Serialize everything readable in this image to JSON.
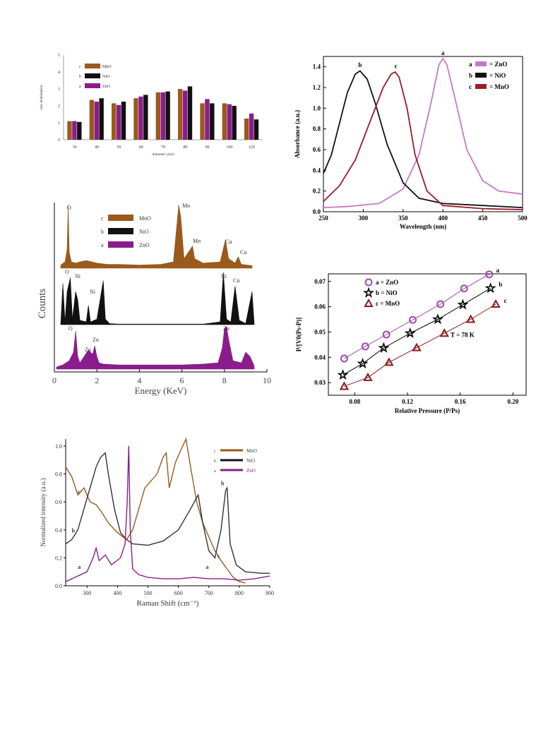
{
  "colors": {
    "mno": "#9a5a1c",
    "nio": "#111111",
    "zno": "#8a1d8c",
    "abs_zno": "#c878c8",
    "abs_mno": "#9b1b2a",
    "bet_zno": "#a04aa8",
    "bet_mno": "#8b1a1a"
  },
  "chart_data": [
    {
      "type": "bar",
      "title": "",
      "xlabel": "diameter (nm)",
      "ylabel": "size distribution",
      "ylim": [
        0,
        5
      ],
      "yticks": [
        "0",
        "1",
        "2",
        "3",
        "4",
        "5"
      ],
      "categories": [
        "30",
        "40",
        "50",
        "60",
        "70",
        "80",
        "90",
        "100",
        "120"
      ],
      "legend": [
        {
          "letter": "c",
          "label": "MnO"
        },
        {
          "letter": "b",
          "label": "NiO"
        },
        {
          "letter": "a",
          "label": "ZnO"
        }
      ],
      "series": [
        {
          "name": "MnO",
          "values": [
            1.1,
            2.35,
            2.15,
            2.45,
            2.8,
            3.0,
            2.15,
            2.15,
            1.25
          ]
        },
        {
          "name": "ZnO",
          "values": [
            1.1,
            2.25,
            2.05,
            2.55,
            2.8,
            2.9,
            2.4,
            2.1,
            1.55
          ]
        },
        {
          "name": "NiO",
          "values": [
            1.05,
            2.45,
            2.25,
            2.65,
            2.85,
            3.15,
            2.15,
            2.0,
            1.2
          ]
        }
      ]
    },
    {
      "type": "line",
      "title": "",
      "xlabel": "Wavelength (nm)",
      "ylabel": "Absorbance (a.u.)",
      "xlim": [
        250,
        500
      ],
      "ylim": [
        0,
        1.5
      ],
      "xticks": [
        "250",
        "300",
        "350",
        "400",
        "450",
        "500"
      ],
      "yticks": [
        "0.0",
        "0.2",
        "0.4",
        "0.6",
        "0.8",
        "1.0",
        "1.2",
        "1.4"
      ],
      "legend": [
        {
          "letter": "a",
          "label": "= ZnO"
        },
        {
          "letter": "b",
          "label": "= NiO"
        },
        {
          "letter": "c",
          "label": "= MnO"
        }
      ],
      "curve_labels": [
        "a",
        "b",
        "c"
      ],
      "series": [
        {
          "name": "ZnO",
          "x": [
            250,
            280,
            320,
            350,
            370,
            385,
            395,
            400,
            405,
            415,
            430,
            450,
            470,
            500
          ],
          "y": [
            0.04,
            0.05,
            0.08,
            0.22,
            0.55,
            1.05,
            1.42,
            1.48,
            1.42,
            1.1,
            0.6,
            0.3,
            0.2,
            0.17
          ]
        },
        {
          "name": "NiO",
          "x": [
            250,
            260,
            270,
            280,
            290,
            296,
            305,
            315,
            330,
            350,
            370,
            400,
            450,
            500
          ],
          "y": [
            0.37,
            0.55,
            0.85,
            1.15,
            1.33,
            1.36,
            1.28,
            1.05,
            0.65,
            0.28,
            0.13,
            0.08,
            0.06,
            0.04
          ]
        },
        {
          "name": "MnO",
          "x": [
            250,
            270,
            290,
            310,
            325,
            335,
            340,
            345,
            355,
            365,
            380,
            400,
            450,
            500
          ],
          "y": [
            0.1,
            0.25,
            0.5,
            0.9,
            1.2,
            1.33,
            1.35,
            1.3,
            1.0,
            0.55,
            0.2,
            0.06,
            0.03,
            0.02
          ]
        }
      ]
    },
    {
      "type": "line",
      "title": "",
      "xlabel": "Energy (KeV)",
      "ylabel": "Counts",
      "xlim": [
        0,
        10
      ],
      "xticks": [
        "0",
        "2",
        "4",
        "6",
        "8",
        "10"
      ],
      "legend": [
        {
          "letter": "c",
          "label": "MnO"
        },
        {
          "letter": "b",
          "label": "NiO"
        },
        {
          "letter": "a",
          "label": "ZnO"
        }
      ],
      "series": [
        {
          "name": "MnO",
          "x": [
            0.3,
            0.5,
            0.6,
            0.65,
            0.7,
            0.8,
            1.0,
            1.2,
            1.5,
            2.0,
            2.5,
            3,
            4,
            5,
            5.6,
            5.85,
            5.95,
            6.1,
            6.4,
            6.5,
            6.6,
            7,
            7.8,
            8.05,
            8.2,
            8.5,
            8.65,
            8.8,
            9.3
          ],
          "y": [
            0.05,
            0.1,
            0.3,
            1.0,
            0.25,
            0.1,
            0.08,
            0.1,
            0.12,
            0.08,
            0.06,
            0.06,
            0.05,
            0.06,
            0.1,
            1.0,
            0.8,
            0.15,
            0.3,
            0.35,
            0.15,
            0.08,
            0.1,
            0.45,
            0.15,
            0.08,
            0.18,
            0.06,
            0.04
          ]
        },
        {
          "name": "NiO",
          "x": [
            0.3,
            0.4,
            0.5,
            0.6,
            0.75,
            0.85,
            1.0,
            1.1,
            1.2,
            1.5,
            1.6,
            1.7,
            2.0,
            2.3,
            2.4,
            2.6,
            3,
            5,
            7,
            7.8,
            7.95,
            8.1,
            8.3,
            8.5,
            8.7,
            9,
            9.3,
            9.4
          ],
          "y": [
            0.02,
            0.75,
            0.05,
            0.6,
            0.85,
            0.1,
            0.6,
            0.45,
            0.08,
            0.05,
            0.35,
            0.05,
            0.1,
            0.8,
            0.1,
            0.02,
            0.01,
            0.01,
            0.01,
            0.05,
            0.95,
            0.1,
            0.05,
            0.7,
            0.08,
            0.02,
            0.6,
            0.02
          ]
        },
        {
          "name": "ZnO",
          "x": [
            0.1,
            0.4,
            0.7,
            0.9,
            1.0,
            1.1,
            1.2,
            1.4,
            1.6,
            1.7,
            1.8,
            1.9,
            2.0,
            2.1,
            2.3,
            3,
            5,
            6,
            7,
            7.7,
            7.9,
            8.0,
            8.1,
            8.2,
            8.4,
            8.8,
            9.0,
            9.2,
            9.4
          ],
          "y": [
            0.05,
            0.1,
            0.2,
            0.4,
            0.9,
            0.3,
            0.15,
            0.3,
            0.45,
            0.4,
            0.35,
            0.55,
            0.3,
            0.15,
            0.12,
            0.1,
            0.1,
            0.1,
            0.12,
            0.15,
            0.5,
            0.95,
            1.0,
            0.7,
            0.2,
            0.15,
            0.4,
            0.3,
            0.08
          ]
        }
      ],
      "annotations": [
        {
          "text": "O",
          "panel": "MnO"
        },
        {
          "text": "Mn",
          "panel": "MnO"
        },
        {
          "text": "Mn",
          "panel": "MnO"
        },
        {
          "text": "Cu",
          "panel": "MnO"
        },
        {
          "text": "Cu",
          "panel": "MnO"
        },
        {
          "text": "O",
          "panel": "NiO"
        },
        {
          "text": "Ni",
          "panel": "NiO"
        },
        {
          "text": "Ni",
          "panel": "NiO"
        },
        {
          "text": "Ni",
          "panel": "NiO"
        },
        {
          "text": "Cu",
          "panel": "NiO"
        },
        {
          "text": "O",
          "panel": "ZnO"
        },
        {
          "text": "Zn",
          "panel": "ZnO"
        },
        {
          "text": "Zn",
          "panel": "ZnO"
        },
        {
          "text": "Zn",
          "panel": "ZnO"
        }
      ]
    },
    {
      "type": "scatter",
      "title": "",
      "xlabel": "Relative Pressure (P/Ps)",
      "ylabel": "P/[V0(Ps-P)]",
      "xlim": [
        0.06,
        0.21
      ],
      "ylim": [
        0.025,
        0.073
      ],
      "xticks": [
        "0.08",
        "0.12",
        "0.16",
        "0.20"
      ],
      "yticks": [
        "0.03",
        "0.04",
        "0.05",
        "0.06",
        "0.07"
      ],
      "legend": [
        {
          "label": "a = ZnO"
        },
        {
          "label": "b = NiO"
        },
        {
          "label": "c = MnO"
        }
      ],
      "annotation": "T = 78 K",
      "curve_labels": [
        "a",
        "b",
        "c"
      ],
      "series": [
        {
          "name": "ZnO",
          "marker": "circle",
          "x": [
            0.072,
            0.088,
            0.104,
            0.124,
            0.145,
            0.163,
            0.182
          ],
          "y": [
            0.0395,
            0.0443,
            0.049,
            0.0548,
            0.061,
            0.0672,
            0.0728
          ]
        },
        {
          "name": "NiO",
          "marker": "star",
          "x": [
            0.071,
            0.086,
            0.102,
            0.122,
            0.143,
            0.162,
            0.183
          ],
          "y": [
            0.033,
            0.0375,
            0.0437,
            0.0495,
            0.055,
            0.0608,
            0.0673
          ]
        },
        {
          "name": "MnO",
          "marker": "triangle",
          "x": [
            0.072,
            0.09,
            0.106,
            0.127,
            0.148,
            0.168,
            0.187
          ],
          "y": [
            0.0285,
            0.032,
            0.038,
            0.0438,
            0.0495,
            0.055,
            0.061
          ]
        }
      ]
    },
    {
      "type": "line",
      "title": "",
      "xlabel": "Raman Shift (cm⁻¹)",
      "ylabel": "Normalized intensity (a.u.)",
      "xlim": [
        230,
        900
      ],
      "ylim": [
        0,
        1.05
      ],
      "xticks": [
        "300",
        "400",
        "500",
        "600",
        "700",
        "800",
        "900"
      ],
      "yticks": [
        "0.0",
        "0.2",
        "0.4",
        "0.6",
        "0.8",
        "1.0"
      ],
      "legend": [
        {
          "letter": "c",
          "label": "MnO"
        },
        {
          "letter": "b",
          "label": "NiO"
        },
        {
          "letter": "a",
          "label": "ZnO"
        }
      ],
      "curve_labels": [
        "c",
        "b",
        "a",
        "a",
        "b",
        "c"
      ],
      "series": [
        {
          "name": "MnO",
          "x": [
            230,
            250,
            270,
            290,
            310,
            330,
            350,
            370,
            400,
            430,
            450,
            470,
            490,
            510,
            530,
            550,
            560,
            570,
            590,
            610,
            625,
            640,
            660,
            680,
            700,
            720,
            740,
            760,
            780,
            800,
            820
          ],
          "y": [
            0.85,
            0.78,
            0.65,
            0.7,
            0.6,
            0.58,
            0.52,
            0.45,
            0.38,
            0.33,
            0.4,
            0.55,
            0.7,
            0.75,
            0.8,
            0.92,
            0.95,
            0.7,
            0.88,
            0.98,
            1.05,
            0.85,
            0.6,
            0.45,
            0.35,
            0.25,
            0.18,
            0.12,
            0.06,
            0.03,
            0.02
          ]
        },
        {
          "name": "NiO",
          "x": [
            230,
            250,
            270,
            290,
            310,
            330,
            345,
            360,
            370,
            390,
            410,
            430,
            450,
            500,
            550,
            600,
            640,
            665,
            680,
            700,
            720,
            740,
            755,
            760,
            770,
            790,
            820,
            870,
            900
          ],
          "y": [
            0.3,
            0.33,
            0.4,
            0.55,
            0.7,
            0.85,
            0.92,
            0.95,
            0.8,
            0.55,
            0.38,
            0.33,
            0.3,
            0.29,
            0.32,
            0.4,
            0.55,
            0.65,
            0.45,
            0.25,
            0.2,
            0.4,
            0.68,
            0.7,
            0.3,
            0.15,
            0.1,
            0.09,
            0.09
          ]
        },
        {
          "name": "ZnO",
          "x": [
            230,
            260,
            300,
            320,
            330,
            340,
            360,
            380,
            410,
            425,
            432,
            437,
            442,
            450,
            470,
            500,
            550,
            600,
            650,
            700,
            750,
            800,
            850,
            900
          ],
          "y": [
            0.03,
            0.06,
            0.1,
            0.2,
            0.27,
            0.18,
            0.22,
            0.15,
            0.2,
            0.3,
            0.6,
            1.0,
            0.4,
            0.12,
            0.08,
            0.06,
            0.05,
            0.05,
            0.06,
            0.05,
            0.05,
            0.04,
            0.05,
            0.07
          ]
        }
      ]
    }
  ]
}
